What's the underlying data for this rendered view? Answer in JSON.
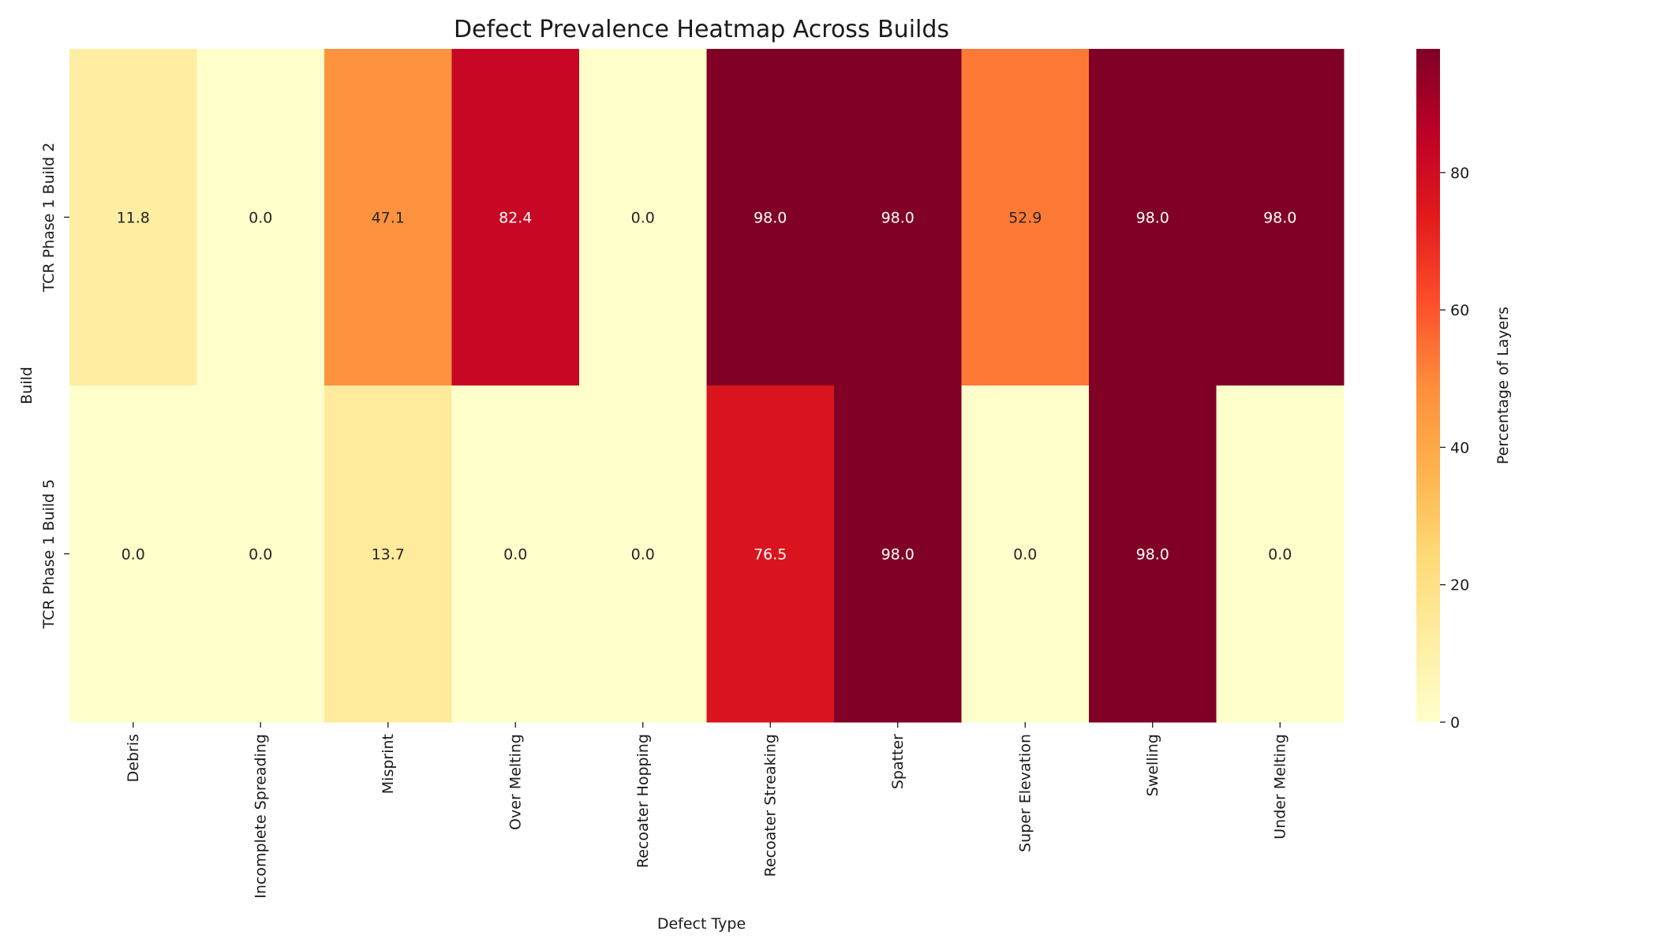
{
  "chart_data": {
    "type": "heatmap",
    "title": "Defect Prevalence Heatmap Across Builds",
    "xlabel": "Defect Type",
    "ylabel": "Build",
    "x_categories": [
      "Debris",
      "Incomplete Spreading",
      "Misprint",
      "Over Melting",
      "Recoater Hopping",
      "Recoater Streaking",
      "Spatter",
      "Super Elevation",
      "Swelling",
      "Under Melting"
    ],
    "y_categories": [
      "TCR Phase 1 Build 2",
      "TCR Phase 1 Build 5"
    ],
    "values": [
      [
        11.8,
        0.0,
        47.1,
        82.4,
        0.0,
        98.0,
        98.0,
        52.9,
        98.0,
        98.0
      ],
      [
        0.0,
        0.0,
        13.7,
        0.0,
        0.0,
        76.5,
        98.0,
        0.0,
        98.0,
        0.0
      ]
    ],
    "colorbar": {
      "label": "Percentage of Layers",
      "ticks": [
        "0",
        "20",
        "40",
        "60",
        "80"
      ],
      "tick_values": [
        0,
        20,
        40,
        60,
        80
      ],
      "range": [
        0,
        98.0
      ]
    },
    "colormap": "YlOrRd",
    "colormap_stops": [
      "#ffffcc",
      "#ffeda0",
      "#fed976",
      "#feb24c",
      "#fd8d3c",
      "#fc4e2a",
      "#e31a1c",
      "#bd0026",
      "#800026"
    ],
    "annotation_format": "0.0"
  }
}
